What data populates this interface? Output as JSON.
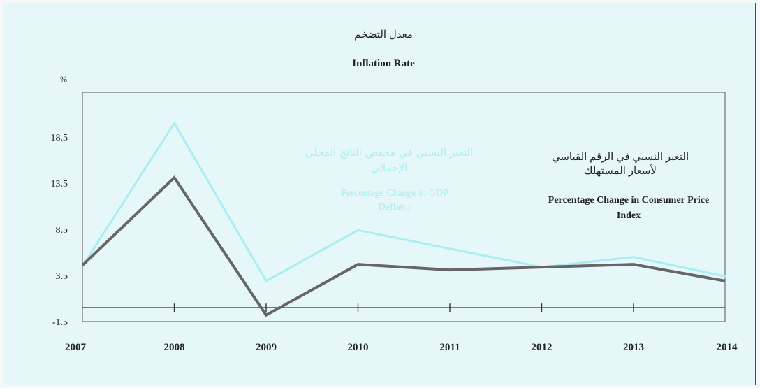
{
  "chart_data": {
    "type": "line",
    "title_ar": "معدل التضخم",
    "title_en": "Inflation Rate",
    "ylabel": "%",
    "ylim": [
      -1.5,
      23.5
    ],
    "yticks": [
      "18.5",
      "13.5",
      "8.5",
      "3.5",
      "-1.5"
    ],
    "ytick_values": [
      18.5,
      13.5,
      8.5,
      3.5,
      -1.5
    ],
    "categories": [
      "2007",
      "2008",
      "2009",
      "2010",
      "2011",
      "2012",
      "2013",
      "2014"
    ],
    "baseline": 0,
    "series": [
      {
        "name_ar": "التغير النسبي في مخفض الناتج المحلي الإجمالي",
        "name_en": "Percentage Change in GDP Deflator",
        "color": "#a8eef2",
        "values": [
          4.5,
          20.0,
          2.9,
          8.4,
          6.4,
          4.4,
          5.5,
          3.4
        ]
      },
      {
        "name_ar": "التغير النسبي في الرقم القياسي لأسعار المستهلك",
        "name_en": "Percentage Change in Consumer Price Index",
        "color": "#666666",
        "values": [
          4.6,
          14.1,
          -0.8,
          4.7,
          4.1,
          4.4,
          4.7,
          2.9
        ]
      }
    ]
  }
}
